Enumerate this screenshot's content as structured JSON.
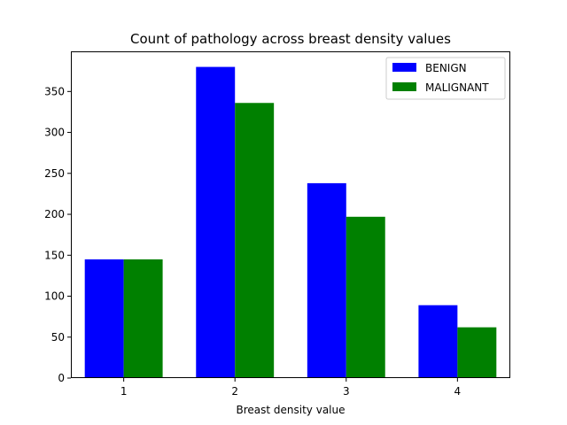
{
  "chart_data": {
    "type": "bar",
    "title": "Count of pathology across breast density values",
    "xlabel": "Breast density value",
    "ylabel": "",
    "categories": [
      "1",
      "2",
      "3",
      "4"
    ],
    "series": [
      {
        "name": "BENIGN",
        "color": "#0000ff",
        "values": [
          145,
          380,
          238,
          89
        ]
      },
      {
        "name": "MALIGNANT",
        "color": "#008000",
        "values": [
          145,
          336,
          197,
          62
        ]
      }
    ],
    "ylim": [
      0,
      399
    ],
    "yticks": [
      0,
      50,
      100,
      150,
      200,
      250,
      300,
      350
    ],
    "grid": false,
    "legend_position": "top-right"
  }
}
